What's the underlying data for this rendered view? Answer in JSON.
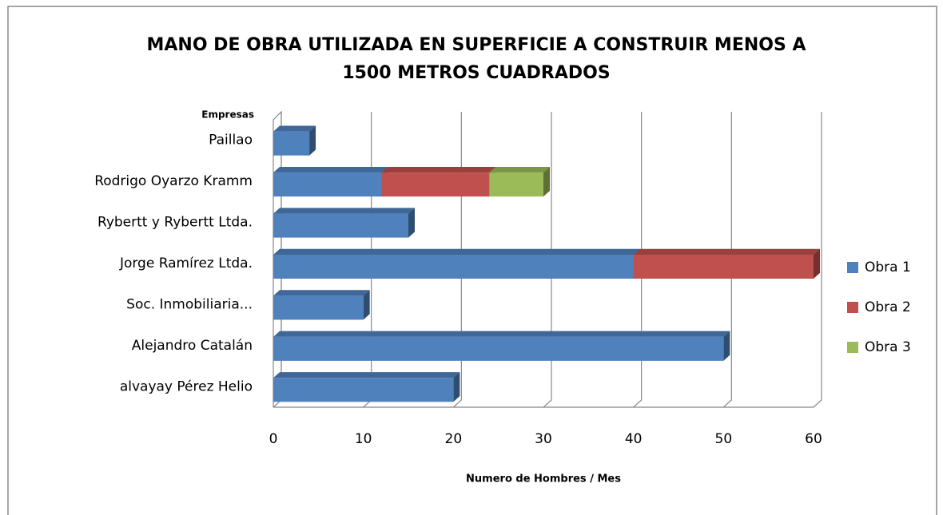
{
  "chart_data": {
    "type": "bar",
    "orientation": "horizontal",
    "stacked": true,
    "three_d": true,
    "title": [
      "MANO DE OBRA UTILIZADA EN SUPERFICIE A CONSTRUIR MENOS A",
      "1500 METROS CUADRADOS"
    ],
    "y_axis_label": "Empresas",
    "x_axis_label": "Numero de Hombres / Mes",
    "categories": [
      "Paillao",
      "Rodrigo Oyarzo Kramm",
      "Rybertt y Rybertt Ltda.",
      "Jorge Ramírez Ltda.",
      "Soc. Inmobiliaria...",
      "Alejandro Catalán",
      "alvayay Pérez Helio"
    ],
    "series": [
      {
        "name": "Obra 1",
        "color": "#4f81bd",
        "values": [
          4,
          12,
          15,
          40,
          10,
          50,
          20
        ]
      },
      {
        "name": "Obra 2",
        "color": "#c0504d",
        "values": [
          0,
          12,
          0,
          20,
          0,
          0,
          0
        ]
      },
      {
        "name": "Obra 3",
        "color": "#9bbb59",
        "values": [
          0,
          6,
          0,
          0,
          0,
          0,
          0
        ]
      }
    ],
    "xlim": [
      0,
      60
    ],
    "xticks": [
      0,
      10,
      20,
      30,
      40,
      50,
      60
    ],
    "grid": true,
    "legend": "right"
  }
}
